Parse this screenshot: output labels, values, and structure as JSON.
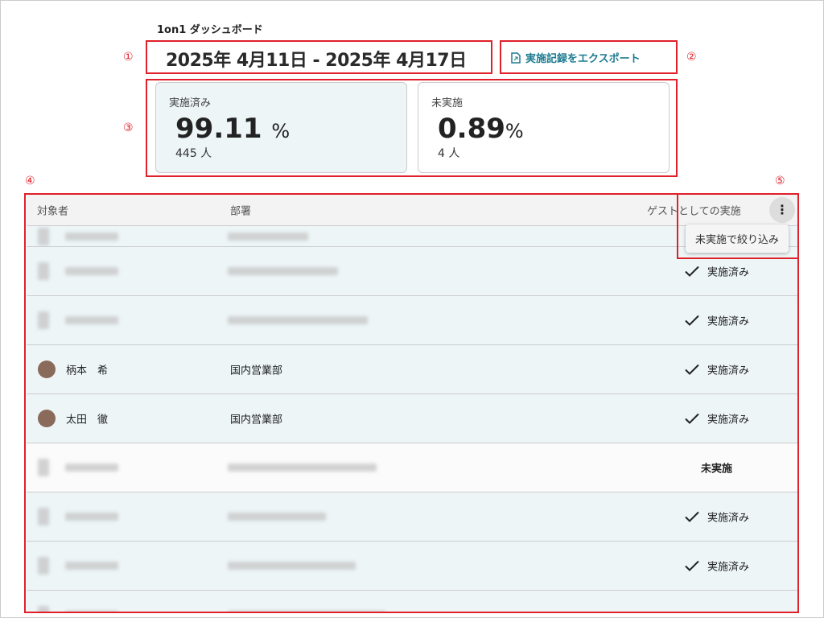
{
  "header": {
    "title": "1on1 ダッシュボード",
    "date_range": "2025年 4月11日 - 2025年 4月17日",
    "export_label": "実施記録をエクスポート",
    "accent": "#1d7c91"
  },
  "cards": [
    {
      "label": "実施済み",
      "percent": "99.11",
      "unit": "%",
      "count": "445 人"
    },
    {
      "label": "未実施",
      "percent": "0.89",
      "unit": "%",
      "count": "4 人"
    }
  ],
  "table": {
    "columns": [
      "対象者",
      "部署",
      "ゲストとしての実施"
    ],
    "menu_item": "未実施で絞り込み",
    "rows": [
      {
        "name": "",
        "dept": "",
        "status": "",
        "blur": true
      },
      {
        "name": "",
        "dept": "",
        "status": "実施済み",
        "blur": true
      },
      {
        "name": "",
        "dept": "",
        "status": "実施済み",
        "blur": true
      },
      {
        "name": "柄本　希",
        "dept": "国内営業部",
        "status": "実施済み"
      },
      {
        "name": "太田　徹",
        "dept": "国内営業部",
        "status": "実施済み"
      },
      {
        "name": "",
        "dept": "",
        "status": "未実施",
        "blur": true
      },
      {
        "name": "",
        "dept": "",
        "status": "実施済み",
        "blur": true
      },
      {
        "name": "",
        "dept": "",
        "status": "実施済み",
        "blur": true
      },
      {
        "name": "",
        "dept": "",
        "status": "",
        "blur": true
      }
    ]
  },
  "annotations": [
    "①",
    "②",
    "③",
    "④",
    "⑤"
  ]
}
